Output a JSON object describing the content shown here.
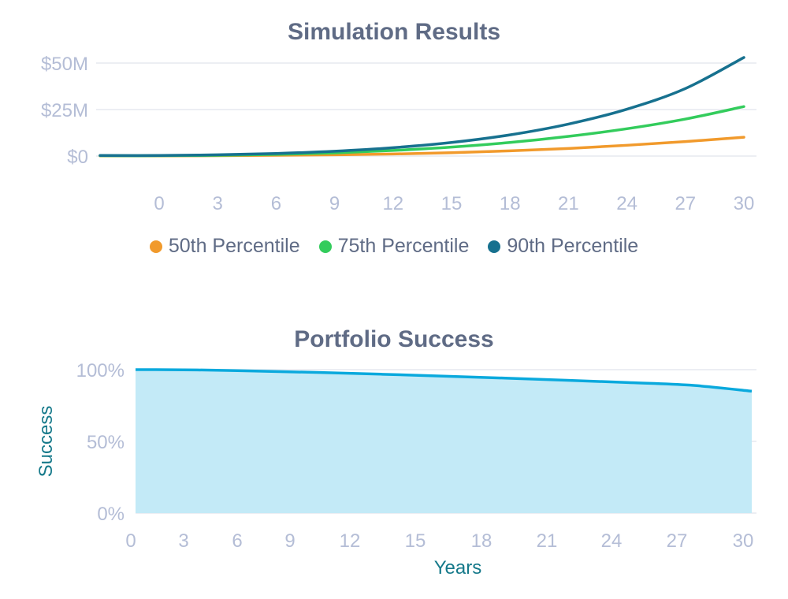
{
  "chart_data": [
    {
      "type": "line",
      "title": "Simulation Results",
      "xlabel": "",
      "ylabel": "",
      "x_ticks": [
        "0",
        "3",
        "6",
        "9",
        "12",
        "15",
        "18",
        "21",
        "24",
        "27",
        "30"
      ],
      "y_ticks": [
        "$0",
        "$25M",
        "$50M"
      ],
      "xlim": [
        -3,
        30
      ],
      "ylim": [
        0,
        50
      ],
      "y_unit": "$M",
      "grid": true,
      "legend_position": "bottom",
      "x": [
        0,
        3,
        6,
        9,
        12,
        15,
        18,
        21,
        24,
        27,
        30
      ],
      "series": [
        {
          "name": "50th Percentile",
          "color": "#f19a2c",
          "values": [
            0.1,
            0.2,
            0.4,
            0.7,
            1.1,
            1.8,
            2.8,
            4.1,
            5.8,
            7.8,
            10.1
          ]
        },
        {
          "name": "75th Percentile",
          "color": "#33cc5c",
          "values": [
            0.2,
            0.4,
            0.9,
            1.7,
            3.0,
            4.8,
            7.3,
            10.6,
            14.7,
            19.9,
            26.6
          ]
        },
        {
          "name": "90th Percentile",
          "color": "#17718f",
          "values": [
            0.3,
            0.7,
            1.4,
            2.6,
            4.5,
            7.3,
            11.4,
            17.2,
            25.2,
            36.3,
            53.0
          ]
        }
      ]
    },
    {
      "type": "area",
      "title": "Portfolio Success",
      "xlabel": "Years",
      "ylabel": "Success",
      "x_ticks": [
        "0",
        "3",
        "6",
        "9",
        "12",
        "15",
        "18",
        "21",
        "24",
        "27",
        "30"
      ],
      "y_ticks": [
        "0%",
        "50%",
        "100%"
      ],
      "xlim": [
        0,
        30
      ],
      "ylim": [
        0,
        100
      ],
      "grid": true,
      "x": [
        0,
        1,
        3,
        6,
        9,
        12,
        15,
        18,
        21,
        24,
        27,
        30
      ],
      "series": [
        {
          "name": "",
          "color": "#0aa9dd",
          "fill": "#c3eaf7",
          "values": [
            100,
            100,
            99.8,
            99,
            98,
            96.8,
            95.5,
            94.1,
            92.6,
            91,
            89.2,
            85
          ]
        }
      ]
    }
  ]
}
